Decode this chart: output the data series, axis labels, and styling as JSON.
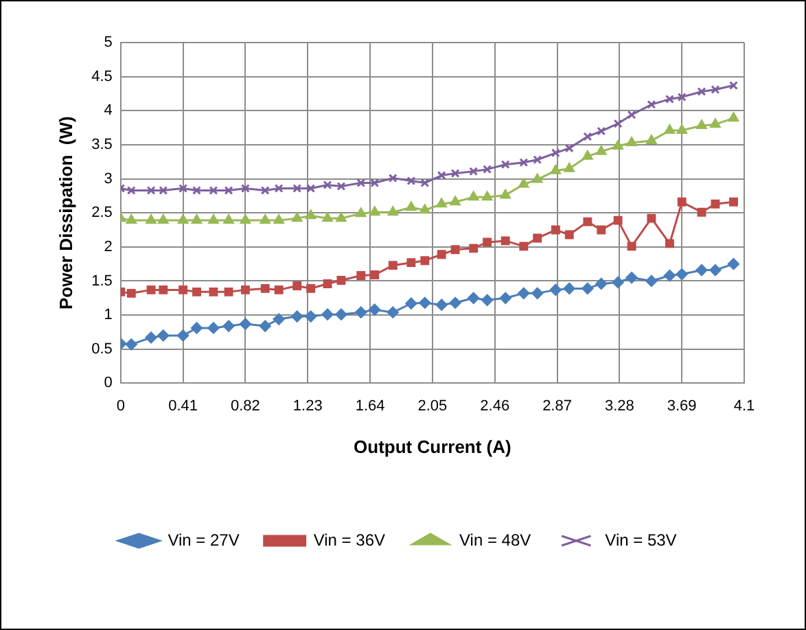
{
  "chart_data": {
    "type": "line",
    "xlabel": "Output Current (A)",
    "ylabel": "Power Dissipation  (W)",
    "x": [
      0,
      0.07,
      0.2,
      0.28,
      0.41,
      0.5,
      0.61,
      0.71,
      0.82,
      0.95,
      1.04,
      1.16,
      1.25,
      1.36,
      1.45,
      1.58,
      1.67,
      1.79,
      1.91,
      2.0,
      2.11,
      2.2,
      2.32,
      2.41,
      2.53,
      2.65,
      2.74,
      2.86,
      2.95,
      3.07,
      3.16,
      3.27,
      3.36,
      3.49,
      3.61,
      3.69,
      3.82,
      3.91,
      4.03
    ],
    "series": [
      {
        "name": "Vin = 27V",
        "color": "#4a7ebb",
        "marker": "diamond",
        "values": [
          0.58,
          0.57,
          0.67,
          0.7,
          0.7,
          0.81,
          0.81,
          0.84,
          0.87,
          0.84,
          0.94,
          0.98,
          0.98,
          1.01,
          1.01,
          1.04,
          1.08,
          1.04,
          1.17,
          1.18,
          1.15,
          1.18,
          1.25,
          1.22,
          1.25,
          1.32,
          1.32,
          1.37,
          1.39,
          1.39,
          1.46,
          1.48,
          1.55,
          1.5,
          1.58,
          1.6,
          1.66,
          1.66,
          1.75
        ]
      },
      {
        "name": "Vin = 36V",
        "color": "#be4b48",
        "marker": "square",
        "values": [
          1.34,
          1.32,
          1.37,
          1.37,
          1.37,
          1.34,
          1.34,
          1.34,
          1.37,
          1.39,
          1.37,
          1.43,
          1.39,
          1.46,
          1.51,
          1.58,
          1.59,
          1.73,
          1.77,
          1.8,
          1.89,
          1.96,
          1.98,
          2.07,
          2.09,
          2.01,
          2.13,
          2.25,
          2.18,
          2.37,
          2.25,
          2.39,
          2.01,
          2.42,
          2.05,
          2.66,
          2.51,
          2.63,
          2.66
        ]
      },
      {
        "name": "Vin = 48V",
        "color": "#98b954",
        "marker": "triangle",
        "values": [
          2.42,
          2.39,
          2.39,
          2.39,
          2.39,
          2.39,
          2.39,
          2.39,
          2.39,
          2.39,
          2.39,
          2.42,
          2.46,
          2.42,
          2.42,
          2.49,
          2.51,
          2.51,
          2.58,
          2.54,
          2.63,
          2.66,
          2.73,
          2.73,
          2.76,
          2.92,
          2.99,
          3.12,
          3.15,
          3.33,
          3.4,
          3.48,
          3.53,
          3.56,
          3.71,
          3.71,
          3.78,
          3.8,
          3.89
        ]
      },
      {
        "name": "Vin = 53V",
        "color": "#7d60a0",
        "marker": "cross",
        "values": [
          2.86,
          2.83,
          2.83,
          2.83,
          2.86,
          2.83,
          2.83,
          2.83,
          2.86,
          2.83,
          2.86,
          2.86,
          2.86,
          2.91,
          2.89,
          2.94,
          2.94,
          3.01,
          2.97,
          2.94,
          3.05,
          3.08,
          3.11,
          3.14,
          3.21,
          3.24,
          3.28,
          3.38,
          3.45,
          3.62,
          3.7,
          3.81,
          3.94,
          4.09,
          4.17,
          4.2,
          4.28,
          4.31,
          4.37
        ]
      }
    ],
    "xlim": [
      0,
      4.1
    ],
    "xticks": [
      0,
      0.41,
      0.82,
      1.23,
      1.64,
      2.05,
      2.46,
      2.87,
      3.28,
      3.69,
      4.1
    ],
    "ylim": [
      0,
      5
    ],
    "yticks": [
      0,
      0.5,
      1,
      1.5,
      2,
      2.5,
      3,
      3.5,
      4,
      4.5,
      5
    ],
    "grid": true,
    "legend": "bottom"
  }
}
